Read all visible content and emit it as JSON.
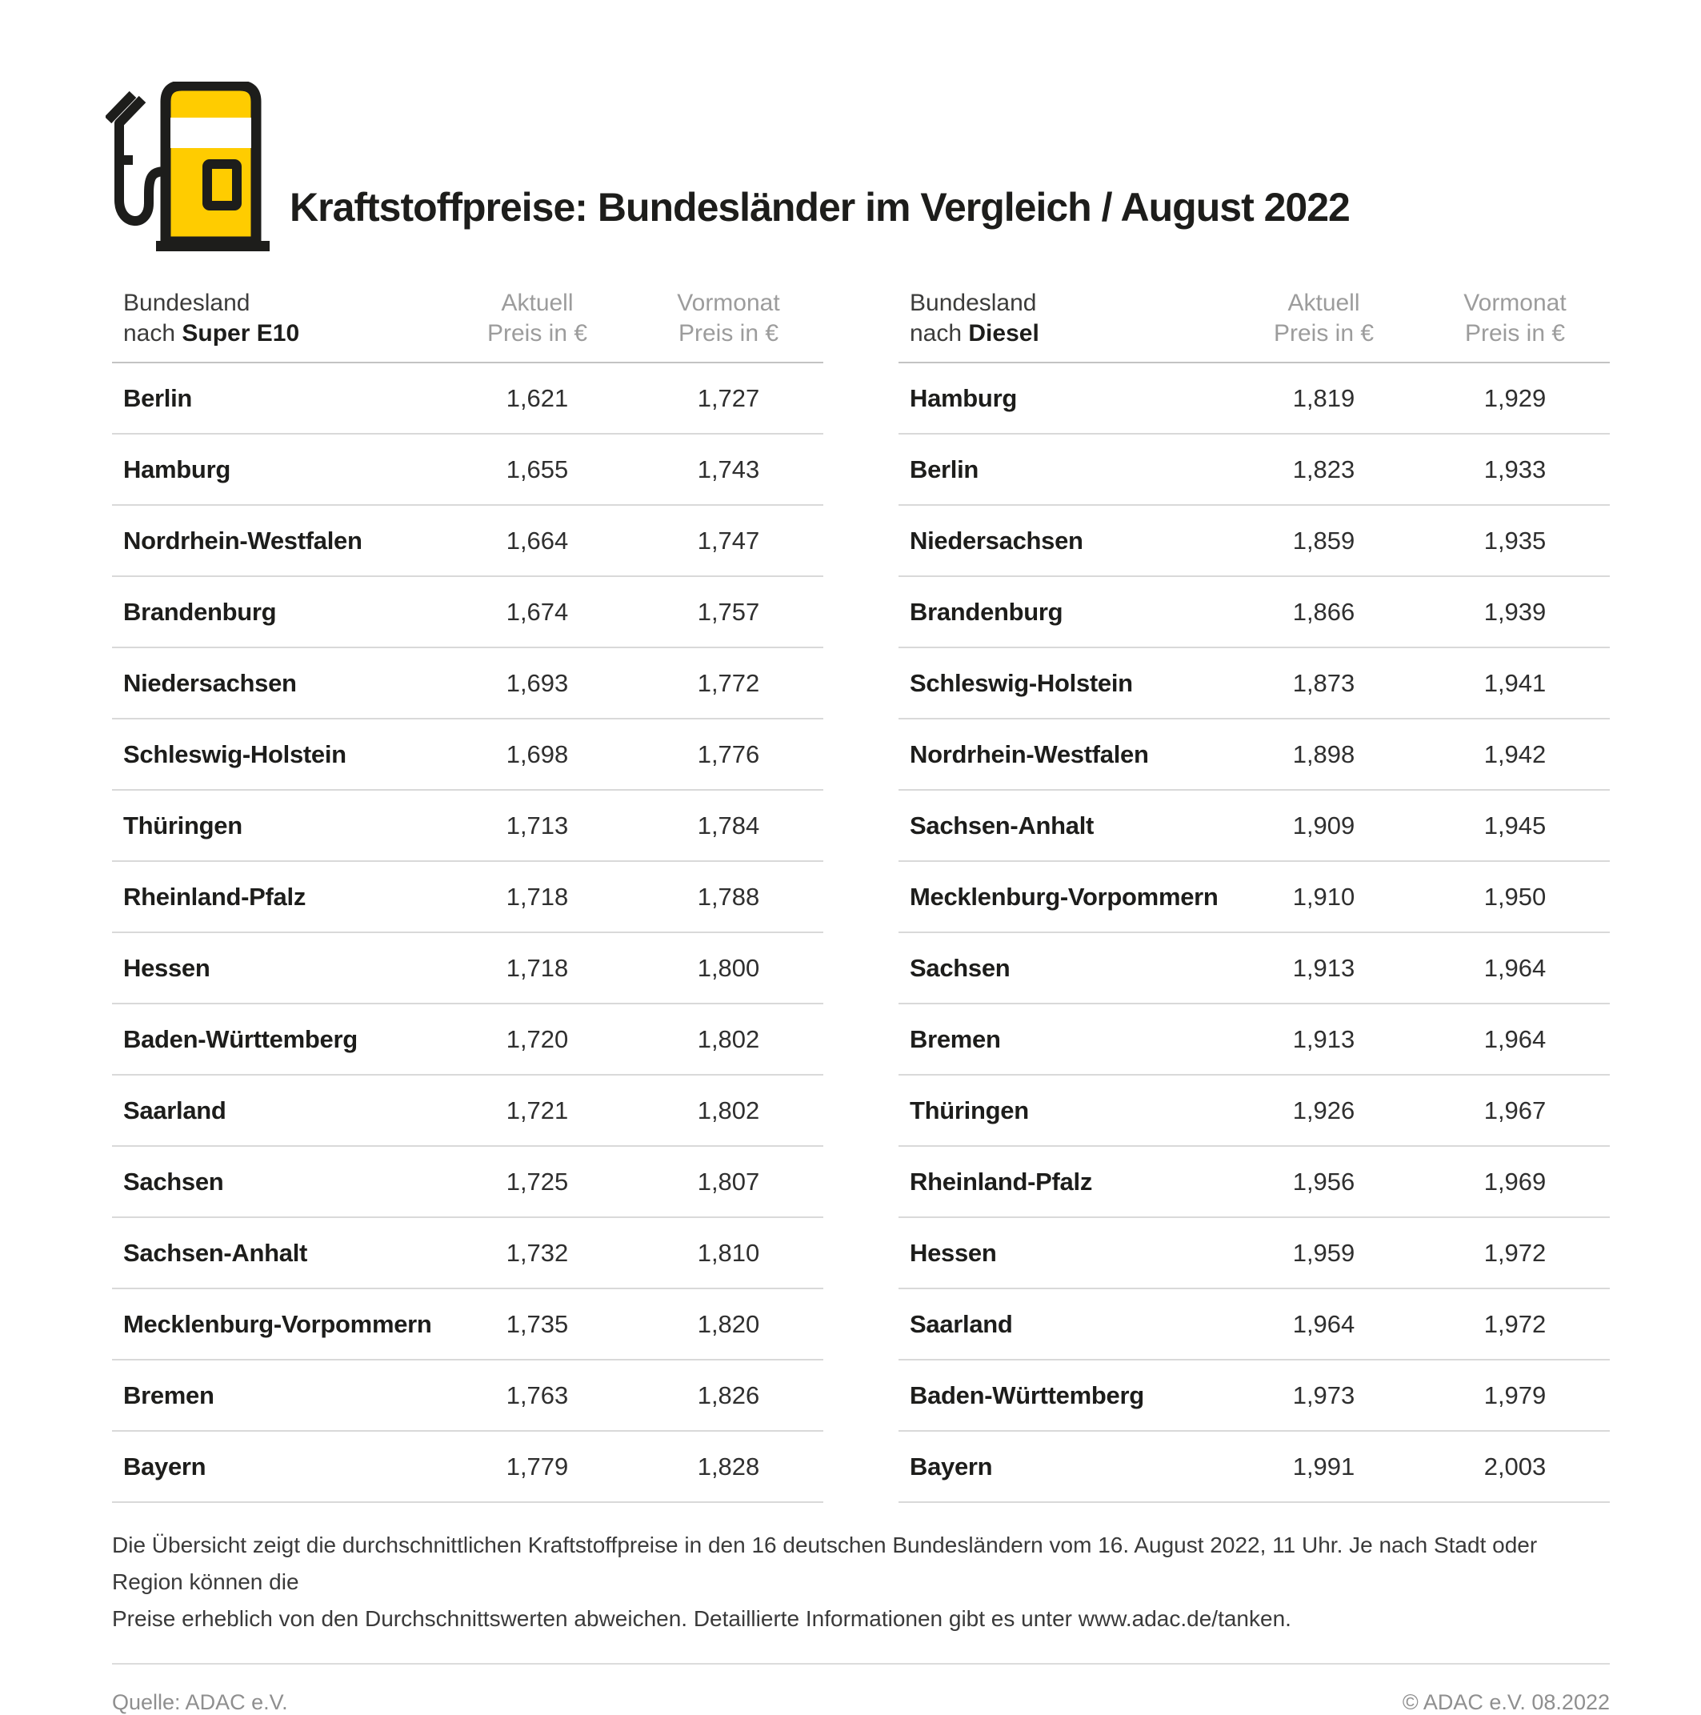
{
  "header": {
    "title": "Kraftstoffpreise: Bundesländer im Vergleich / August 2022",
    "icon": "fuel-pump-icon"
  },
  "colors": {
    "accent_yellow": "#FFCC00",
    "outline_black": "#1d1d1b",
    "cheapest_green": "#96BE26",
    "most_expensive_red": "#D2141C",
    "header_gray": "#9C9C9C",
    "divider_gray": "#D9D9D9",
    "footer_gray": "#8F8F8F"
  },
  "tables": [
    {
      "head_line1": "Bundesland",
      "head_line2_prefix": "nach ",
      "head_line2_bold": "Super E10",
      "col_aktuell_line1": "Aktuell",
      "col_aktuell_line2": "Preis in €",
      "col_vormonat_line1": "Vormonat",
      "col_vormonat_line2": "Preis in €"
    },
    {
      "head_line1": "Bundesland",
      "head_line2_prefix": "nach ",
      "head_line2_bold": "Diesel",
      "col_aktuell_line1": "Aktuell",
      "col_aktuell_line2": "Preis in €",
      "col_vormonat_line1": "Vormonat",
      "col_vormonat_line2": "Preis in €"
    }
  ],
  "chart_data": [
    {
      "type": "table",
      "title": "Bundesland nach Super E10",
      "columns": [
        "Bundesland nach Super E10",
        "Aktuell Preis in €",
        "Vormonat Preis in €"
      ],
      "rows": [
        {
          "bundesland": "Berlin",
          "aktuell": "1,621",
          "vormonat": "1,727",
          "highlight": "cheapest"
        },
        {
          "bundesland": "Hamburg",
          "aktuell": "1,655",
          "vormonat": "1,743",
          "highlight": null
        },
        {
          "bundesland": "Nordrhein-Westfalen",
          "aktuell": "1,664",
          "vormonat": "1,747",
          "highlight": null
        },
        {
          "bundesland": "Brandenburg",
          "aktuell": "1,674",
          "vormonat": "1,757",
          "highlight": null
        },
        {
          "bundesland": "Niedersachsen",
          "aktuell": "1,693",
          "vormonat": "1,772",
          "highlight": null
        },
        {
          "bundesland": "Schleswig-Holstein",
          "aktuell": "1,698",
          "vormonat": "1,776",
          "highlight": null
        },
        {
          "bundesland": "Thüringen",
          "aktuell": "1,713",
          "vormonat": "1,784",
          "highlight": null
        },
        {
          "bundesland": "Rheinland-Pfalz",
          "aktuell": "1,718",
          "vormonat": "1,788",
          "highlight": null
        },
        {
          "bundesland": "Hessen",
          "aktuell": "1,718",
          "vormonat": "1,800",
          "highlight": null
        },
        {
          "bundesland": "Baden-Württemberg",
          "aktuell": "1,720",
          "vormonat": "1,802",
          "highlight": null
        },
        {
          "bundesland": "Saarland",
          "aktuell": "1,721",
          "vormonat": "1,802",
          "highlight": null
        },
        {
          "bundesland": "Sachsen",
          "aktuell": "1,725",
          "vormonat": "1,807",
          "highlight": null
        },
        {
          "bundesland": "Sachsen-Anhalt",
          "aktuell": "1,732",
          "vormonat": "1,810",
          "highlight": null
        },
        {
          "bundesland": "Mecklenburg-Vorpommern",
          "aktuell": "1,735",
          "vormonat": "1,820",
          "highlight": null
        },
        {
          "bundesland": "Bremen",
          "aktuell": "1,763",
          "vormonat": "1,826",
          "highlight": null
        },
        {
          "bundesland": "Bayern",
          "aktuell": "1,779",
          "vormonat": "1,828",
          "highlight": "most_expensive"
        }
      ]
    },
    {
      "type": "table",
      "title": "Bundesland nach Diesel",
      "columns": [
        "Bundesland nach Diesel",
        "Aktuell Preis in €",
        "Vormonat Preis in €"
      ],
      "rows": [
        {
          "bundesland": "Hamburg",
          "aktuell": "1,819",
          "vormonat": "1,929",
          "highlight": "cheapest"
        },
        {
          "bundesland": "Berlin",
          "aktuell": "1,823",
          "vormonat": "1,933",
          "highlight": null
        },
        {
          "bundesland": "Niedersachsen",
          "aktuell": "1,859",
          "vormonat": "1,935",
          "highlight": null
        },
        {
          "bundesland": "Brandenburg",
          "aktuell": "1,866",
          "vormonat": "1,939",
          "highlight": null
        },
        {
          "bundesland": "Schleswig-Holstein",
          "aktuell": "1,873",
          "vormonat": "1,941",
          "highlight": null
        },
        {
          "bundesland": "Nordrhein-Westfalen",
          "aktuell": "1,898",
          "vormonat": "1,942",
          "highlight": null
        },
        {
          "bundesland": "Sachsen-Anhalt",
          "aktuell": "1,909",
          "vormonat": "1,945",
          "highlight": null
        },
        {
          "bundesland": "Mecklenburg-Vorpommern",
          "aktuell": "1,910",
          "vormonat": "1,950",
          "highlight": null
        },
        {
          "bundesland": "Sachsen",
          "aktuell": "1,913",
          "vormonat": "1,964",
          "highlight": null
        },
        {
          "bundesland": "Bremen",
          "aktuell": "1,913",
          "vormonat": "1,964",
          "highlight": null
        },
        {
          "bundesland": "Thüringen",
          "aktuell": "1,926",
          "vormonat": "1,967",
          "highlight": null
        },
        {
          "bundesland": "Rheinland-Pfalz",
          "aktuell": "1,956",
          "vormonat": "1,969",
          "highlight": null
        },
        {
          "bundesland": "Hessen",
          "aktuell": "1,959",
          "vormonat": "1,972",
          "highlight": null
        },
        {
          "bundesland": "Saarland",
          "aktuell": "1,964",
          "vormonat": "1,972",
          "highlight": null
        },
        {
          "bundesland": "Baden-Württemberg",
          "aktuell": "1,973",
          "vormonat": "1,979",
          "highlight": null
        },
        {
          "bundesland": "Bayern",
          "aktuell": "1,991",
          "vormonat": "2,003",
          "highlight": "most_expensive"
        }
      ]
    }
  ],
  "footnote": {
    "line1": "Die Übersicht zeigt die durchschnittlichen Kraftstoffpreise in den 16 deutschen Bundesländern vom 16. August 2022, 11 Uhr. Je nach Stadt oder Region können die",
    "line2": "Preise erheblich von den Durchschnittswerten abweichen. Detaillierte Informationen gibt es unter www.adac.de/tanken."
  },
  "footer": {
    "source": "Quelle: ADAC e.V.",
    "copyright": "© ADAC e.V. 08.2022"
  }
}
